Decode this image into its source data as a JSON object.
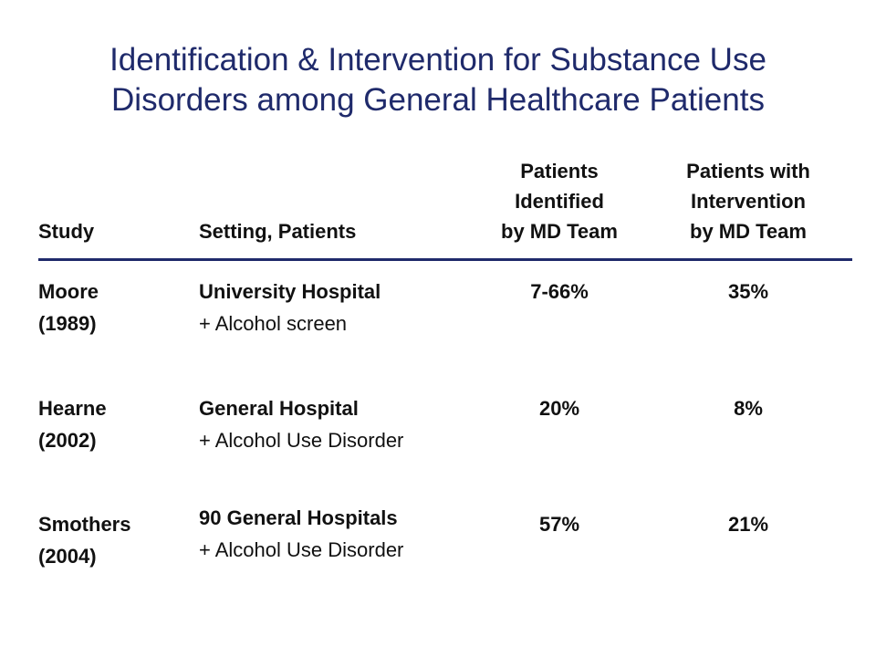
{
  "title": {
    "line1": "Identification & Intervention for Substance Use",
    "line2": "Disorders among General Healthcare Patients"
  },
  "columns": {
    "study": "Study",
    "setting": "Setting, Patients",
    "identified": [
      "Patients",
      "Identified",
      "by MD Team"
    ],
    "intervention": [
      "Patients with",
      "Intervention",
      "by MD Team"
    ]
  },
  "rows": [
    {
      "study": [
        "Moore",
        "(1989)"
      ],
      "setting_main": "University Hospital",
      "setting_sub": "+ Alcohol screen",
      "identified": "7-66%",
      "intervention": "35%"
    },
    {
      "study": [
        "Hearne",
        "(2002)"
      ],
      "setting_main": "General Hospital",
      "setting_sub": "+ Alcohol Use Disorder",
      "identified": "20%",
      "intervention": "8%"
    },
    {
      "study": [
        "Smothers",
        "(2004)"
      ],
      "setting_main": "90 General Hospitals",
      "setting_sub": "+ Alcohol Use Disorder",
      "identified": "57%",
      "intervention": "21%"
    }
  ],
  "colors": {
    "title": "#1f2a6b",
    "rule": "#1f2a6b",
    "text": "#111111"
  }
}
